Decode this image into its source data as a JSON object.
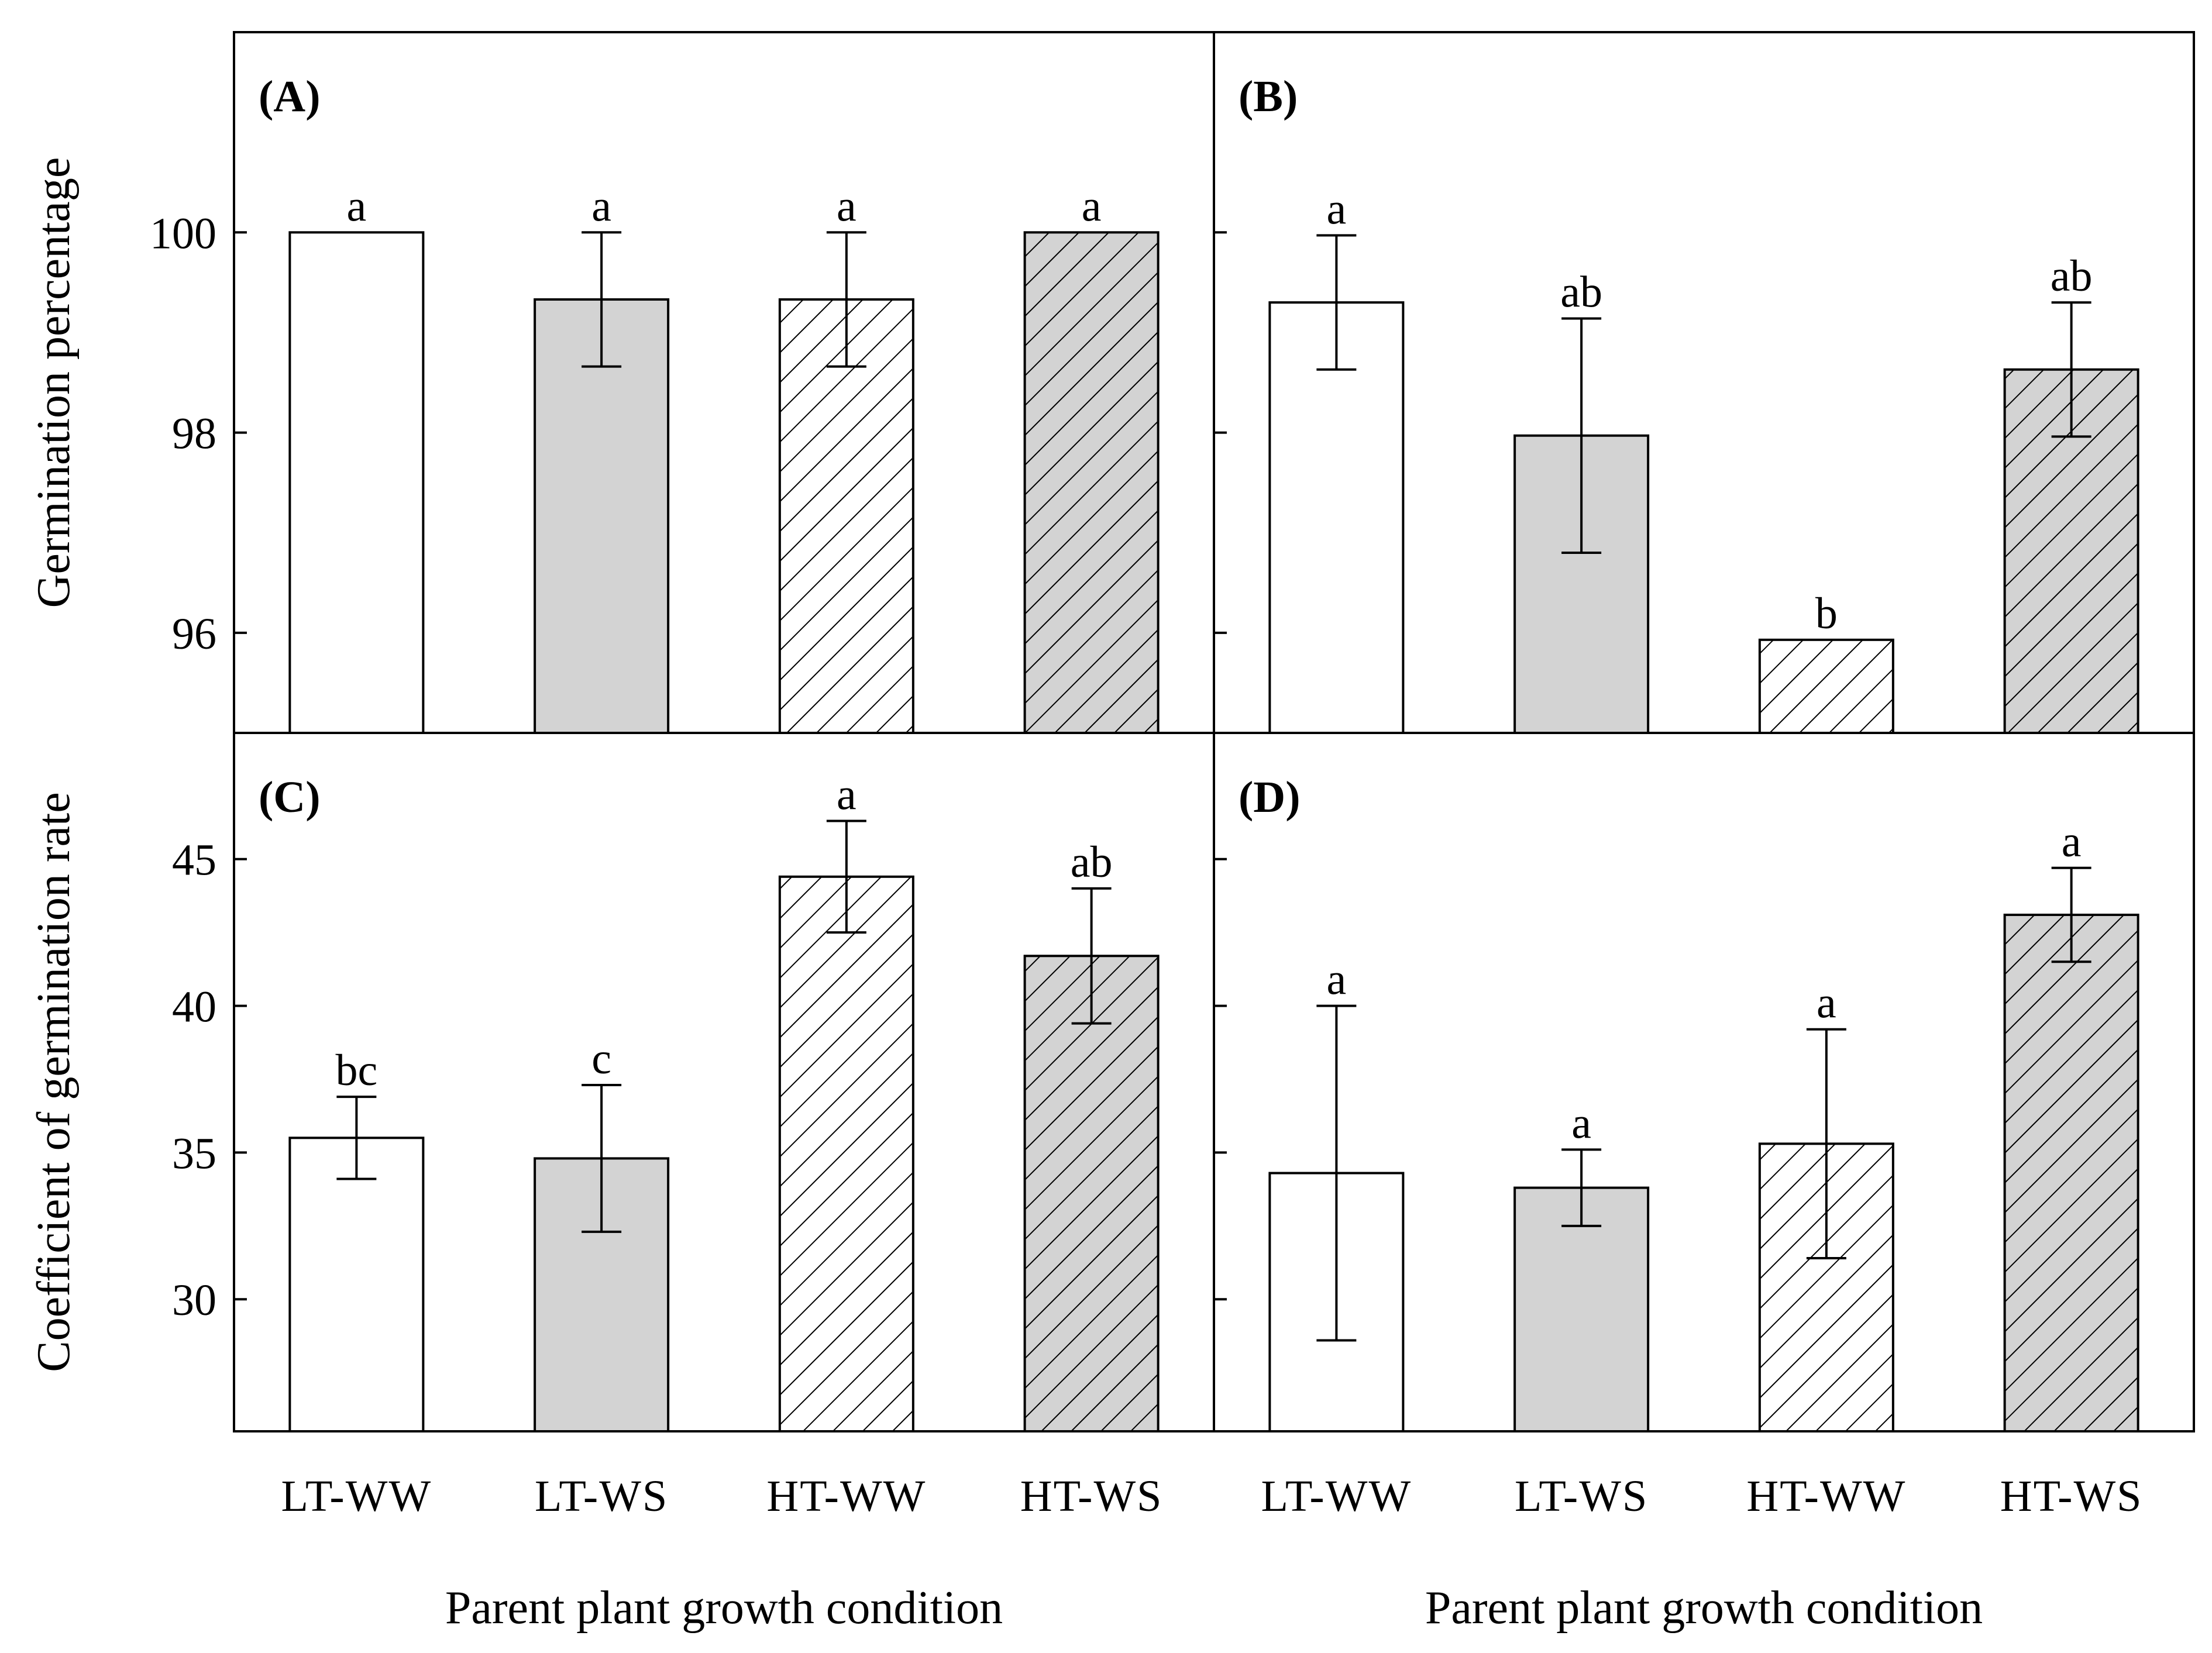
{
  "chart_data": {
    "type": "bar",
    "categories": [
      "LT-WW",
      "LT-WS",
      "HT-WW",
      "HT-WS"
    ],
    "xlabel": "Parent plant growth condition",
    "colors": {
      "white_fill": "#ffffff",
      "gray_fill": "#d3d3d3",
      "stroke": "#000000"
    },
    "hatched": [
      false,
      false,
      true,
      true
    ],
    "panels": [
      {
        "id": "A",
        "label": "(A)",
        "ylabel": "Germination percentage",
        "ylim": [
          95,
          102
        ],
        "yticks": [
          96,
          98,
          100
        ],
        "show_tick_labels": true,
        "values": [
          100,
          99.33,
          99.33,
          100
        ],
        "errors": [
          0,
          0.67,
          0.67,
          0
        ],
        "letters": [
          "a",
          "a",
          "a",
          "a"
        ]
      },
      {
        "id": "B",
        "label": "(B)",
        "ylabel": "",
        "ylim": [
          95,
          102
        ],
        "yticks": [
          96,
          98,
          100
        ],
        "show_tick_labels": false,
        "values": [
          99.3,
          97.97,
          95.93,
          98.63
        ],
        "errors": [
          0.67,
          1.17,
          0,
          0.67
        ],
        "letters": [
          "a",
          "ab",
          "b",
          "ab"
        ]
      },
      {
        "id": "C",
        "label": "(C)",
        "ylabel": "Coefficient of germination rate",
        "ylim": [
          25.5,
          49.3
        ],
        "yticks": [
          30,
          35,
          40,
          45
        ],
        "show_tick_labels": true,
        "values": [
          35.5,
          34.8,
          44.4,
          41.7
        ],
        "errors": [
          1.4,
          2.5,
          1.9,
          2.3
        ],
        "letters": [
          "bc",
          "c",
          "a",
          "ab"
        ]
      },
      {
        "id": "D",
        "label": "(D)",
        "ylabel": "",
        "ylim": [
          25.5,
          49.3
        ],
        "yticks": [
          30,
          35,
          40,
          45
        ],
        "show_tick_labels": false,
        "values": [
          34.3,
          33.8,
          35.3,
          43.1
        ],
        "errors": [
          5.7,
          1.3,
          3.9,
          1.6
        ],
        "letters": [
          "a",
          "a",
          "a",
          "a"
        ]
      }
    ]
  }
}
